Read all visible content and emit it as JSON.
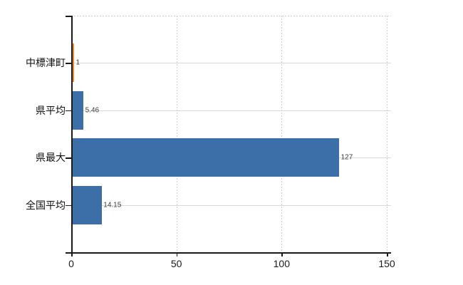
{
  "chart_data": {
    "type": "bar",
    "orientation": "horizontal",
    "categories": [
      "中標津町",
      "県平均",
      "県最大",
      "全国平均"
    ],
    "values": [
      1,
      5.46,
      127,
      14.15
    ],
    "value_labels": [
      "1",
      "5.46",
      "127",
      "14.15"
    ],
    "bar_colors": [
      "#eb8a33",
      "#3c6ea8",
      "#3c6ea8",
      "#3c6ea8"
    ],
    "xticks": [
      0,
      50,
      100,
      150
    ],
    "xtick_labels": [
      "0",
      "50",
      "100",
      "150"
    ],
    "xlim": [
      0,
      151.7
    ],
    "title": "",
    "xlabel": "",
    "ylabel": "",
    "grid": true,
    "legend": false,
    "highlight_color": "#eb8a33",
    "series_color": "#3c6ea8"
  }
}
